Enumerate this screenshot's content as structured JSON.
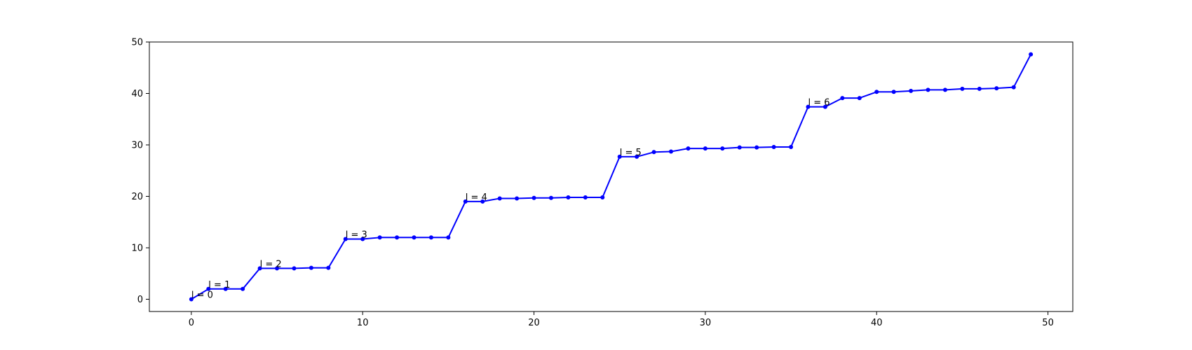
{
  "chart_data": {
    "type": "line",
    "title": "",
    "xlabel": "",
    "ylabel": "",
    "xlim": [
      -2.45,
      51.45
    ],
    "ylim": [
      -2.38,
      50.0
    ],
    "x_ticks": [
      0,
      10,
      20,
      30,
      40,
      50
    ],
    "y_ticks": [
      0,
      10,
      20,
      30,
      40,
      50
    ],
    "grid": false,
    "legend": "none",
    "series": [
      {
        "color": "#0000ff",
        "marker": "dot",
        "x": [
          0,
          1,
          2,
          3,
          4,
          5,
          6,
          7,
          8,
          9,
          10,
          11,
          12,
          13,
          14,
          15,
          16,
          17,
          18,
          19,
          20,
          21,
          22,
          23,
          24,
          25,
          26,
          27,
          28,
          29,
          30,
          31,
          32,
          33,
          34,
          35,
          36,
          37,
          38,
          39,
          40,
          41,
          42,
          43,
          44,
          45,
          46,
          47,
          48,
          49
        ],
        "values": [
          0,
          2.0,
          2.0,
          2.0,
          6.0,
          6.0,
          6.0,
          6.1,
          6.1,
          11.7,
          11.7,
          12.0,
          12.0,
          12.0,
          12.0,
          12.0,
          19.0,
          19.0,
          19.6,
          19.6,
          19.7,
          19.7,
          19.8,
          19.8,
          19.8,
          27.7,
          27.7,
          28.6,
          28.7,
          29.3,
          29.3,
          29.3,
          29.5,
          29.5,
          29.6,
          29.6,
          37.4,
          37.4,
          39.1,
          39.1,
          40.3,
          40.3,
          40.5,
          40.7,
          40.7,
          40.9,
          40.9,
          41.0,
          41.2,
          47.6
        ]
      }
    ],
    "annotations": [
      {
        "text": "l = 0",
        "x": 0,
        "y": 0
      },
      {
        "text": "l = 1",
        "x": 1,
        "y": 2.0
      },
      {
        "text": "l = 2",
        "x": 4,
        "y": 6.0
      },
      {
        "text": "l = 3",
        "x": 9,
        "y": 11.7
      },
      {
        "text": "l = 4",
        "x": 16,
        "y": 19.0
      },
      {
        "text": "l = 5",
        "x": 25,
        "y": 27.7
      },
      {
        "text": "l = 6",
        "x": 36,
        "y": 37.4
      }
    ]
  }
}
